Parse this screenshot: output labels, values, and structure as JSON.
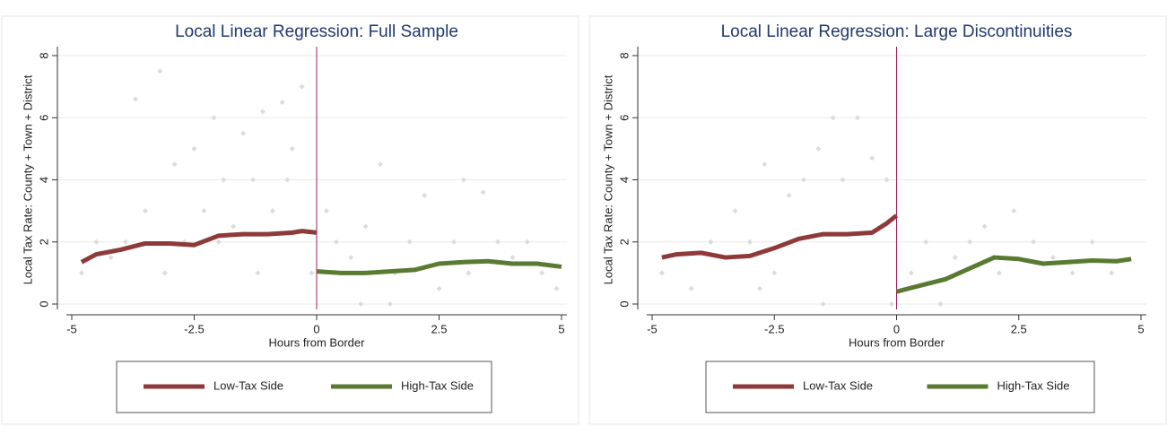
{
  "chart_data": [
    {
      "type": "scatter-line",
      "title": "Local Linear Regression: Full Sample",
      "x_label": "Hours from Border",
      "y_label": "Local Tax Rate: County + Town + District",
      "xlim": [
        -5,
        5
      ],
      "ylim": [
        0,
        8
      ],
      "xticks": [
        -5,
        -2.5,
        0,
        2.5,
        5
      ],
      "yticks": [
        0,
        2,
        4,
        6,
        8
      ],
      "grid": true,
      "vline": 0,
      "vline_color": "#a0205a",
      "point_color": "#dcdcdc",
      "points": {
        "x": [
          -4.8,
          -4.5,
          -4.2,
          -3.9,
          -3.7,
          -3.5,
          -3.2,
          -3.1,
          -2.9,
          -2.7,
          -2.5,
          -2.3,
          -2.1,
          -1.9,
          -1.7,
          -1.5,
          -1.3,
          -1.1,
          -0.9,
          -0.7,
          -0.5,
          -0.3,
          -0.1,
          -1.2,
          -2.0,
          -0.6,
          0.2,
          0.4,
          0.7,
          1.0,
          1.3,
          1.6,
          1.9,
          2.2,
          2.5,
          2.8,
          3.1,
          3.4,
          3.7,
          4.0,
          4.3,
          4.6,
          4.9,
          0.9,
          1.5,
          3.0
        ],
        "y": [
          1,
          2,
          1.5,
          2,
          6.6,
          3,
          7.5,
          1,
          4.5,
          2,
          5,
          3,
          6,
          4,
          2.5,
          5.5,
          4,
          6.2,
          3,
          6.5,
          5,
          7,
          1,
          1,
          2,
          4,
          3,
          2,
          1.5,
          2.5,
          4.5,
          1,
          2,
          3.5,
          0.5,
          2,
          1,
          3.6,
          2,
          1.5,
          2,
          1,
          0.5,
          0,
          0,
          4
        ]
      },
      "series": [
        {
          "name": "Low-Tax Side",
          "color": "#8e3a3a",
          "x": [
            -4.8,
            -4.5,
            -4,
            -3.5,
            -3,
            -2.5,
            -2,
            -1.5,
            -1,
            -0.5,
            -0.3,
            0
          ],
          "values": [
            1.35,
            1.6,
            1.75,
            1.95,
            1.95,
            1.9,
            2.2,
            2.25,
            2.25,
            2.3,
            2.35,
            2.3
          ]
        },
        {
          "name": "High-Tax Side",
          "color": "#5a7a32",
          "x": [
            0,
            0.5,
            1,
            1.5,
            2,
            2.5,
            3,
            3.5,
            4,
            4.5,
            5
          ],
          "values": [
            1.05,
            1.0,
            1.0,
            1.05,
            1.1,
            1.3,
            1.35,
            1.38,
            1.3,
            1.3,
            1.2
          ]
        }
      ]
    },
    {
      "type": "scatter-line",
      "title": "Local Linear Regression: Large Discontinuities",
      "x_label": "Hours from Border",
      "y_label": "Local Tax Rate: County + Town + District",
      "xlim": [
        -5,
        5
      ],
      "ylim": [
        0,
        8
      ],
      "xticks": [
        -5,
        -2.5,
        0,
        2.5,
        5
      ],
      "yticks": [
        0,
        2,
        4,
        6,
        8
      ],
      "grid": true,
      "vline": 0,
      "vline_color": "#a0205a",
      "point_color": "#dcdcdc",
      "points": {
        "x": [
          -4.8,
          -4.2,
          -3.8,
          -3.3,
          -3.0,
          -2.7,
          -2.5,
          -2.2,
          -1.9,
          -1.6,
          -1.3,
          -1.1,
          -0.8,
          -0.5,
          -0.2,
          -0.1,
          -1.5,
          -2.8,
          0.3,
          0.6,
          0.9,
          1.2,
          1.5,
          1.8,
          2.1,
          2.4,
          2.8,
          3.2,
          3.6,
          4.0,
          4.4
        ],
        "y": [
          1,
          0.5,
          2,
          3,
          2,
          4.5,
          1,
          3.5,
          4,
          5,
          6,
          4,
          6,
          4.7,
          4,
          0,
          0,
          0.5,
          1,
          2,
          0,
          1.5,
          2,
          2.5,
          1,
          3,
          2,
          1.5,
          1,
          2,
          1
        ]
      },
      "series": [
        {
          "name": "Low-Tax Side",
          "color": "#8e3a3a",
          "x": [
            -4.8,
            -4.5,
            -4,
            -3.5,
            -3,
            -2.5,
            -2,
            -1.5,
            -1,
            -0.5,
            -0.2,
            0
          ],
          "values": [
            1.5,
            1.6,
            1.65,
            1.5,
            1.55,
            1.8,
            2.1,
            2.25,
            2.25,
            2.3,
            2.6,
            2.85
          ]
        },
        {
          "name": "High-Tax Side",
          "color": "#5a7a32",
          "x": [
            0,
            0.5,
            1,
            1.5,
            2,
            2.5,
            3,
            3.5,
            4,
            4.5,
            4.8
          ],
          "values": [
            0.4,
            0.6,
            0.8,
            1.15,
            1.5,
            1.45,
            1.3,
            1.35,
            1.4,
            1.38,
            1.45
          ]
        }
      ]
    }
  ]
}
